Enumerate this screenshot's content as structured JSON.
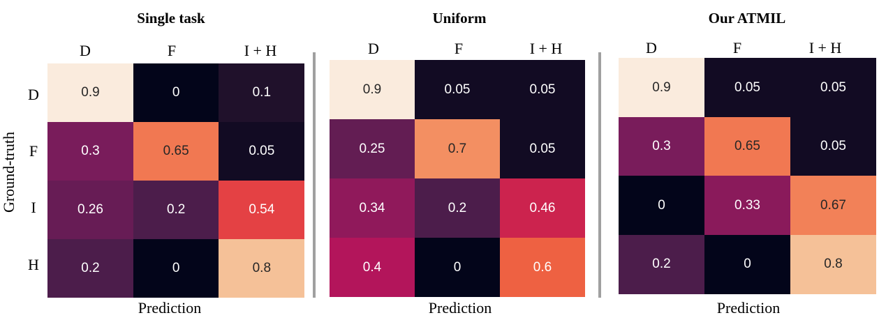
{
  "colors": {
    "divider": "#a0a0a0",
    "colormap": "rocket"
  },
  "ylabel": "Ground-truth",
  "chart_data": [
    {
      "type": "heatmap",
      "title": "Single task",
      "xlabel": "Prediction",
      "columns": [
        "D",
        "F",
        "I + H"
      ],
      "rows": [
        "D",
        "F",
        "I",
        "H"
      ],
      "values": [
        [
          0.9,
          0,
          0.1
        ],
        [
          0.3,
          0.65,
          0.05
        ],
        [
          0.26,
          0.2,
          0.54
        ],
        [
          0.2,
          0,
          0.8
        ]
      ]
    },
    {
      "type": "heatmap",
      "title": "Uniform",
      "xlabel": "Prediction",
      "columns": [
        "D",
        "F",
        "I + H"
      ],
      "rows": [
        "D",
        "F",
        "I",
        "H"
      ],
      "values": [
        [
          0.9,
          0.05,
          0.05
        ],
        [
          0.25,
          0.7,
          0.05
        ],
        [
          0.34,
          0.2,
          0.46
        ],
        [
          0.4,
          0,
          0.6
        ]
      ]
    },
    {
      "type": "heatmap",
      "title": "Our ATMIL",
      "xlabel": "Prediction",
      "columns": [
        "D",
        "F",
        "I + H"
      ],
      "rows": [
        "D",
        "F",
        "I",
        "H"
      ],
      "values": [
        [
          0.9,
          0.05,
          0.05
        ],
        [
          0.3,
          0.65,
          0.05
        ],
        [
          0,
          0.33,
          0.67
        ],
        [
          0.2,
          0,
          0.8
        ]
      ]
    }
  ]
}
